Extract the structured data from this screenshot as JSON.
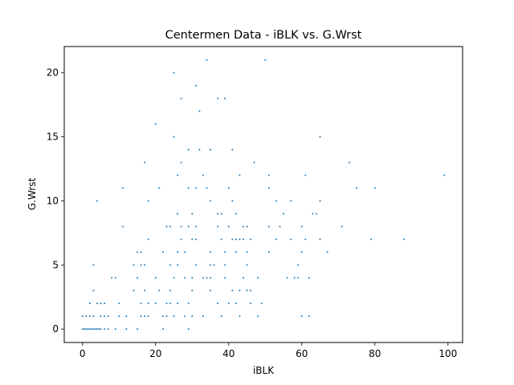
{
  "chart_data": {
    "type": "scatter",
    "title": "Centermen Data - iBLK vs. G.Wrst",
    "xlabel": "iBLK",
    "ylabel": "G.Wrst",
    "xlim": [
      -5,
      104
    ],
    "ylim": [
      -1.05,
      22.05
    ],
    "x_ticks": [
      0,
      20,
      40,
      60,
      80,
      100
    ],
    "y_ticks": [
      0,
      5,
      10,
      15,
      20
    ],
    "grid": false,
    "marker_color": "#1f77b4",
    "series": [
      {
        "points": [
          [
            0,
            0
          ],
          [
            0.5,
            0
          ],
          [
            1,
            0
          ],
          [
            1.5,
            0
          ],
          [
            2,
            0
          ],
          [
            2.5,
            0
          ],
          [
            3,
            0
          ],
          [
            3.5,
            0
          ],
          [
            4,
            0
          ],
          [
            4.5,
            0
          ],
          [
            5,
            0
          ],
          [
            6,
            0
          ],
          [
            7,
            0
          ],
          [
            9,
            0
          ],
          [
            12,
            0
          ],
          [
            15,
            0
          ],
          [
            22,
            0
          ],
          [
            29,
            0
          ],
          [
            0,
            1
          ],
          [
            1,
            1
          ],
          [
            2,
            1
          ],
          [
            3,
            1
          ],
          [
            5,
            1
          ],
          [
            6,
            1
          ],
          [
            7,
            1
          ],
          [
            10,
            1
          ],
          [
            12,
            1
          ],
          [
            16,
            1
          ],
          [
            17,
            1
          ],
          [
            18,
            1
          ],
          [
            22,
            1
          ],
          [
            23,
            1
          ],
          [
            25,
            1
          ],
          [
            28,
            1
          ],
          [
            30,
            1
          ],
          [
            33,
            1
          ],
          [
            38,
            1
          ],
          [
            43,
            1
          ],
          [
            48,
            1
          ],
          [
            60,
            1
          ],
          [
            62,
            1
          ],
          [
            2,
            2
          ],
          [
            4,
            2
          ],
          [
            5,
            2
          ],
          [
            6,
            2
          ],
          [
            10,
            2
          ],
          [
            16,
            2
          ],
          [
            18,
            2
          ],
          [
            20,
            2
          ],
          [
            23,
            2
          ],
          [
            24,
            2
          ],
          [
            26,
            2
          ],
          [
            29,
            2
          ],
          [
            37,
            2
          ],
          [
            40,
            2
          ],
          [
            42,
            2
          ],
          [
            46,
            2
          ],
          [
            49,
            2
          ],
          [
            3,
            3
          ],
          [
            14,
            3
          ],
          [
            17,
            3
          ],
          [
            21,
            3
          ],
          [
            24,
            3
          ],
          [
            30,
            3
          ],
          [
            35,
            3
          ],
          [
            41,
            3
          ],
          [
            43,
            3
          ],
          [
            45,
            3
          ],
          [
            46,
            3
          ],
          [
            8,
            4
          ],
          [
            9,
            4
          ],
          [
            15,
            4
          ],
          [
            20,
            4
          ],
          [
            25,
            4
          ],
          [
            28,
            4
          ],
          [
            30,
            4
          ],
          [
            33,
            4
          ],
          [
            34,
            4
          ],
          [
            35,
            4
          ],
          [
            39,
            4
          ],
          [
            44,
            4
          ],
          [
            48,
            4
          ],
          [
            56,
            4
          ],
          [
            58,
            4
          ],
          [
            59,
            4
          ],
          [
            62,
            4
          ],
          [
            3,
            5
          ],
          [
            14,
            5
          ],
          [
            16,
            5
          ],
          [
            17,
            5
          ],
          [
            24,
            5
          ],
          [
            26,
            5
          ],
          [
            31,
            5
          ],
          [
            35,
            5
          ],
          [
            36,
            5
          ],
          [
            39,
            5
          ],
          [
            45,
            5
          ],
          [
            59,
            5
          ],
          [
            15,
            6
          ],
          [
            16,
            6
          ],
          [
            22,
            6
          ],
          [
            26,
            6
          ],
          [
            28,
            6
          ],
          [
            35,
            6
          ],
          [
            39,
            6
          ],
          [
            42,
            6
          ],
          [
            45,
            6
          ],
          [
            51,
            6
          ],
          [
            60,
            6
          ],
          [
            67,
            6
          ],
          [
            18,
            7
          ],
          [
            27,
            7
          ],
          [
            30,
            7
          ],
          [
            31,
            7
          ],
          [
            38,
            7
          ],
          [
            41,
            7
          ],
          [
            42,
            7
          ],
          [
            43,
            7
          ],
          [
            44,
            7
          ],
          [
            46,
            7
          ],
          [
            53,
            7
          ],
          [
            57,
            7
          ],
          [
            61,
            7
          ],
          [
            65,
            7
          ],
          [
            79,
            7
          ],
          [
            88,
            7
          ],
          [
            11,
            8
          ],
          [
            23,
            8
          ],
          [
            24,
            8
          ],
          [
            27,
            8
          ],
          [
            29,
            8
          ],
          [
            31,
            8
          ],
          [
            37,
            8
          ],
          [
            40,
            8
          ],
          [
            44,
            8
          ],
          [
            45,
            8
          ],
          [
            51,
            8
          ],
          [
            54,
            8
          ],
          [
            60,
            8
          ],
          [
            71,
            8
          ],
          [
            26,
            9
          ],
          [
            30,
            9
          ],
          [
            37,
            9
          ],
          [
            38,
            9
          ],
          [
            42,
            9
          ],
          [
            55,
            9
          ],
          [
            63,
            9
          ],
          [
            64,
            9
          ],
          [
            4,
            10
          ],
          [
            18,
            10
          ],
          [
            35,
            10
          ],
          [
            41,
            10
          ],
          [
            53,
            10
          ],
          [
            57,
            10
          ],
          [
            65,
            10
          ],
          [
            11,
            11
          ],
          [
            21,
            11
          ],
          [
            29,
            11
          ],
          [
            31,
            11
          ],
          [
            34,
            11
          ],
          [
            40,
            11
          ],
          [
            51,
            11
          ],
          [
            75,
            11
          ],
          [
            80,
            11
          ],
          [
            26,
            12
          ],
          [
            33,
            12
          ],
          [
            43,
            12
          ],
          [
            51,
            12
          ],
          [
            61,
            12
          ],
          [
            99,
            12
          ],
          [
            17,
            13
          ],
          [
            27,
            13
          ],
          [
            47,
            13
          ],
          [
            73,
            13
          ],
          [
            29,
            14
          ],
          [
            32,
            14
          ],
          [
            35,
            14
          ],
          [
            41,
            14
          ],
          [
            25,
            15
          ],
          [
            65,
            15
          ],
          [
            20,
            16
          ],
          [
            32,
            17
          ],
          [
            27,
            18
          ],
          [
            37,
            18
          ],
          [
            39,
            18
          ],
          [
            31,
            19
          ],
          [
            25,
            20
          ],
          [
            34,
            21
          ],
          [
            50,
            21
          ]
        ]
      }
    ]
  }
}
